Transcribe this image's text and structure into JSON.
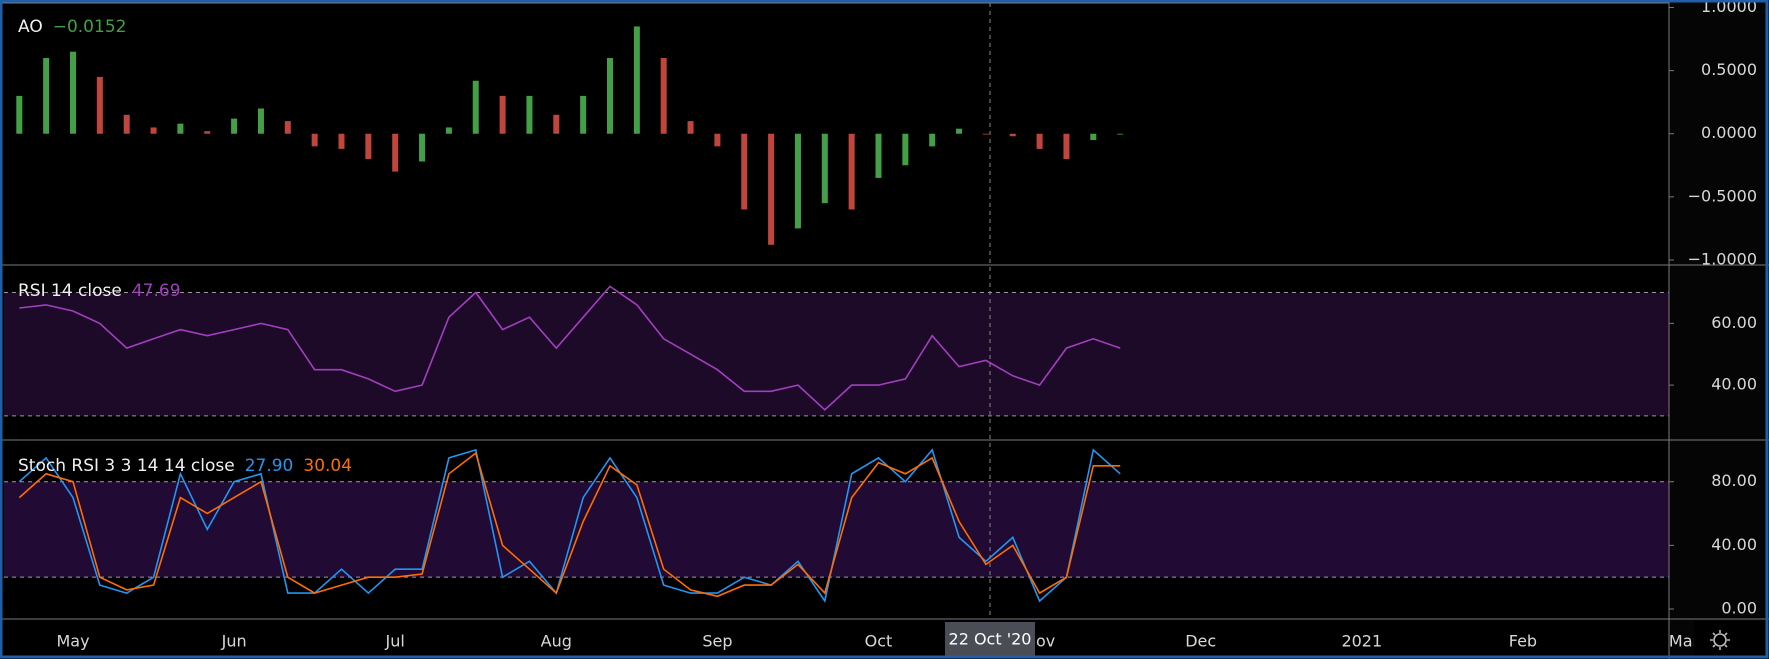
{
  "chart_data": [
    {
      "type": "histogram-bar",
      "title": "AO",
      "readout": "−0.0152",
      "readout_color": "#43a047",
      "rising_color": "#43a047",
      "falling_color": "#c0453c",
      "values": [
        0.3,
        0.6,
        0.65,
        0.45,
        0.15,
        0.05,
        0.08,
        0.02,
        0.12,
        0.2,
        0.1,
        -0.1,
        -0.12,
        -0.2,
        -0.3,
        -0.22,
        0.05,
        0.42,
        0.3,
        0.3,
        0.15,
        0.3,
        0.6,
        0.85,
        0.6,
        0.1,
        -0.1,
        -0.6,
        -0.88,
        -0.75,
        -0.55,
        -0.6,
        -0.35,
        -0.25,
        -0.1,
        0.04,
        0.0,
        -0.02,
        -0.12,
        -0.2,
        -0.05,
        0.0,
        null,
        null,
        null,
        null,
        null,
        null,
        null,
        null,
        null,
        null,
        null,
        null,
        null,
        null,
        null,
        null,
        null,
        null,
        null,
        null,
        null
      ],
      "ylim": [
        -1.04,
        1.02
      ],
      "yticks": [
        {
          "value": 1,
          "label": "1.0000"
        },
        {
          "value": 0.5,
          "label": "0.5000"
        },
        {
          "value": 0,
          "label": "0.0000"
        },
        {
          "value": -0.5,
          "label": "−0.5000"
        },
        {
          "value": -1,
          "label": "−1.0000"
        }
      ]
    },
    {
      "type": "line",
      "title": "RSI 14 close",
      "series": [
        {
          "color": "#a13fbd",
          "readout": "47.69",
          "values": [
            65,
            66,
            64,
            60,
            52,
            55,
            58,
            56,
            58,
            60,
            58,
            45,
            45,
            42,
            38,
            40,
            62,
            70,
            58,
            62,
            52,
            62,
            72,
            66,
            55,
            50,
            45,
            38,
            38,
            40,
            32,
            40,
            40,
            42,
            56,
            46,
            48,
            43,
            40,
            52,
            55,
            52,
            null,
            null,
            null,
            null,
            null,
            null,
            null,
            null,
            null,
            null,
            null,
            null,
            null,
            null,
            null,
            null,
            null,
            null,
            null,
            null,
            null
          ]
        }
      ],
      "bands": [
        30,
        70
      ],
      "band_color": "#1d0a29",
      "ylim": [
        22.2,
        78.6
      ],
      "yticks": [
        {
          "value": 40,
          "label": "40.00"
        },
        {
          "value": 60,
          "label": "60.00"
        }
      ]
    },
    {
      "type": "line",
      "title": "Stoch RSI 3 3 14 14 close",
      "series": [
        {
          "color": "#2196f3",
          "readout": "27.90",
          "values": [
            80,
            95,
            70,
            15,
            10,
            20,
            85,
            50,
            80,
            85,
            10,
            10,
            25,
            10,
            25,
            25,
            95,
            100,
            20,
            30,
            10,
            70,
            95,
            70,
            15,
            10,
            10,
            20,
            15,
            30,
            5,
            85,
            95,
            80,
            100,
            45,
            30,
            45,
            5,
            20,
            100,
            85,
            null,
            null,
            null,
            null,
            null,
            null,
            null,
            null,
            null,
            null,
            null,
            null,
            null,
            null,
            null,
            null,
            null,
            null,
            null,
            null,
            null
          ]
        },
        {
          "color": "#ff6d00",
          "readout": "30.04",
          "values": [
            70,
            85,
            80,
            20,
            12,
            15,
            70,
            60,
            70,
            80,
            20,
            10,
            15,
            20,
            20,
            22,
            85,
            98,
            40,
            25,
            10,
            55,
            90,
            78,
            25,
            12,
            8,
            15,
            15,
            28,
            10,
            70,
            92,
            85,
            95,
            55,
            28,
            40,
            10,
            20,
            90,
            90,
            null,
            null,
            null,
            null,
            null,
            null,
            null,
            null,
            null,
            null,
            null,
            null,
            null,
            null,
            null,
            null,
            null,
            null,
            null,
            null,
            null
          ]
        }
      ],
      "bands": [
        20,
        80
      ],
      "band_color": "#210a33",
      "ylim": [
        -6.3,
        105.6
      ],
      "yticks": [
        {
          "value": 0,
          "label": "0.00"
        },
        {
          "value": 40,
          "label": "40.00"
        },
        {
          "value": 80,
          "label": "80.00"
        }
      ],
      "categories": [
        null,
        null,
        "May",
        null,
        null,
        null,
        null,
        null,
        "Jun",
        null,
        null,
        null,
        null,
        null,
        "Jul",
        null,
        null,
        null,
        null,
        null,
        "Aug",
        null,
        null,
        null,
        null,
        null,
        "Sep",
        null,
        null,
        null,
        null,
        null,
        "Oct",
        null,
        null,
        null,
        null,
        null,
        "Nov",
        null,
        null,
        null,
        null,
        null,
        "Dec",
        null,
        null,
        null,
        null,
        null,
        "2021",
        null,
        null,
        null,
        null,
        null,
        "Feb",
        null,
        null,
        null,
        null,
        null,
        "Mar"
      ]
    }
  ],
  "crosshair": {
    "label": "22 Oct '20"
  }
}
